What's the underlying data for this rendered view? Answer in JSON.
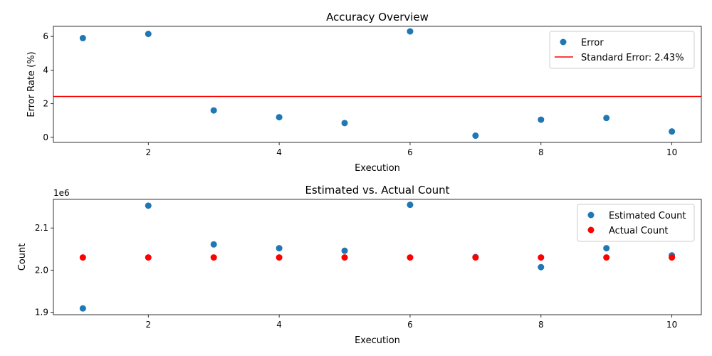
{
  "chart_data": [
    {
      "type": "scatter",
      "title": "Accuracy Overview",
      "xlabel": "Execution",
      "ylabel": "Error Rate (%)",
      "xlim": [
        0.55,
        10.45
      ],
      "ylim": [
        -0.3,
        6.6
      ],
      "xticks": [
        2,
        4,
        6,
        8,
        10
      ],
      "yticks": [
        0,
        2,
        4,
        6
      ],
      "grid": false,
      "legend_position": "top-right",
      "series": [
        {
          "name": "Error",
          "color": "#1f77b4",
          "x": [
            1,
            2,
            3,
            4,
            5,
            6,
            7,
            8,
            9,
            10
          ],
          "y": [
            5.9,
            6.15,
            1.6,
            1.2,
            0.85,
            6.3,
            0.1,
            1.05,
            1.15,
            0.35
          ]
        }
      ],
      "hline": {
        "name": "Standard Error: 2.43%",
        "y": 2.43,
        "color": "#ff0000"
      }
    },
    {
      "type": "scatter",
      "title": "Estimated vs. Actual Count",
      "xlabel": "Execution",
      "ylabel": "Count",
      "offset_label": "1e6",
      "xlim": [
        0.55,
        10.45
      ],
      "ylim": [
        1.894,
        2.168
      ],
      "xticks": [
        2,
        4,
        6,
        8,
        10
      ],
      "yticks": [
        1.9,
        2.0,
        2.1
      ],
      "ytick_labels": [
        "1.9",
        "2.0",
        "2.1"
      ],
      "grid": false,
      "legend_position": "top-right",
      "series": [
        {
          "name": "Estimated Count",
          "color": "#1f77b4",
          "x": [
            1,
            2,
            3,
            4,
            5,
            6,
            7,
            8,
            9,
            10
          ],
          "y": [
            1.909,
            2.153,
            2.061,
            2.052,
            2.046,
            2.155,
            2.031,
            2.007,
            2.052,
            2.035
          ]
        },
        {
          "name": "Actual Count",
          "color": "#ff0000",
          "x": [
            1,
            2,
            3,
            4,
            5,
            6,
            7,
            8,
            9,
            10
          ],
          "y": [
            2.03,
            2.03,
            2.03,
            2.03,
            2.03,
            2.03,
            2.03,
            2.03,
            2.03,
            2.03
          ]
        }
      ]
    }
  ]
}
